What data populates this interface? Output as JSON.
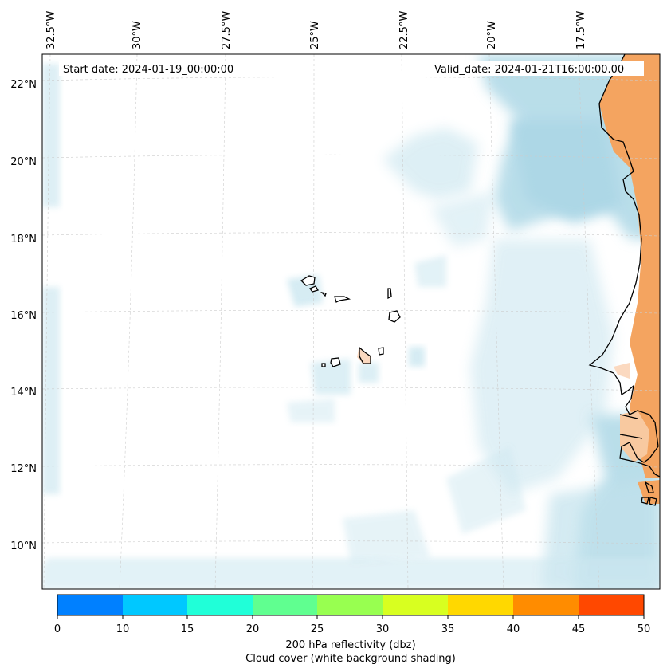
{
  "map": {
    "start_date": "Start date: 2024-01-19_00:00:00",
    "valid_date": "Valid_date: 2024-01-21T16:00:00.00",
    "lon_labels": [
      "32.5°W",
      "30°W",
      "27.5°W",
      "25°W",
      "22.5°W",
      "20°W",
      "17.5°W"
    ],
    "lat_labels": [
      "22°N",
      "20°N",
      "18°N",
      "16°N",
      "14°N",
      "12°N",
      "10°N"
    ],
    "colors": {
      "cloud": "#add8e6",
      "land_reflectivity": "#f4a460",
      "coastline": "#000000",
      "gridline": "#cccccc"
    }
  },
  "colorbar": {
    "ticks": [
      "0",
      "10",
      "15",
      "20",
      "25",
      "30",
      "35",
      "40",
      "45",
      "50"
    ],
    "colors": [
      "#0080ff",
      "#00c8ff",
      "#20ffd8",
      "#60ff90",
      "#98ff50",
      "#d8ff20",
      "#ffd800",
      "#ff8c00",
      "#ff4800"
    ],
    "title_line1": "200 hPa reflectivity (dbz)",
    "title_line2": "Cloud cover (white background shading)"
  }
}
